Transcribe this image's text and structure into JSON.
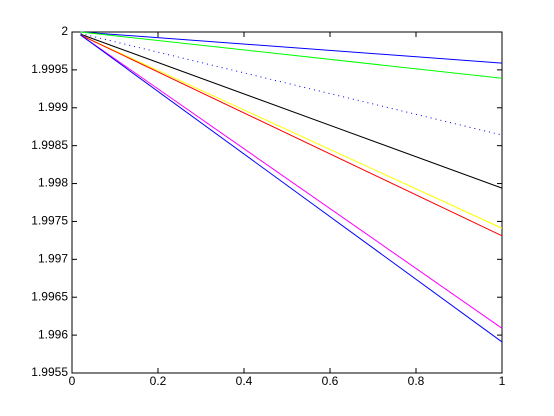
{
  "chart_data": {
    "type": "line",
    "x": [
      0.02,
      1
    ],
    "series": [
      {
        "color": "#0000ff",
        "style": "solid",
        "values": [
          2,
          1.99959
        ]
      },
      {
        "color": "#00ff00",
        "style": "solid",
        "values": [
          2,
          1.99939
        ]
      },
      {
        "color": "#0000ff",
        "style": "dotted",
        "values": [
          1.99998,
          1.99864
        ]
      },
      {
        "color": "#000000",
        "style": "solid",
        "values": [
          1.99997,
          1.99794
        ]
      },
      {
        "color": "#ffff00",
        "style": "solid",
        "values": [
          1.99996,
          1.99741
        ]
      },
      {
        "color": "#ff0000",
        "style": "solid",
        "values": [
          1.99996,
          1.99731
        ]
      },
      {
        "color": "#ff00ff",
        "style": "solid",
        "values": [
          1.99996,
          1.99609
        ]
      },
      {
        "color": "#0000ff",
        "style": "solid",
        "values": [
          1.99996,
          1.99591
        ]
      }
    ],
    "xlim": [
      0,
      1
    ],
    "xticks": [
      0,
      0.2,
      0.4,
      0.6,
      0.8,
      1
    ],
    "ylim": [
      1.9955,
      2
    ],
    "yticks": [
      1.9955,
      1.996,
      1.9965,
      1.997,
      1.9975,
      1.998,
      1.9985,
      1.999,
      1.9995,
      2
    ],
    "grid": false
  }
}
